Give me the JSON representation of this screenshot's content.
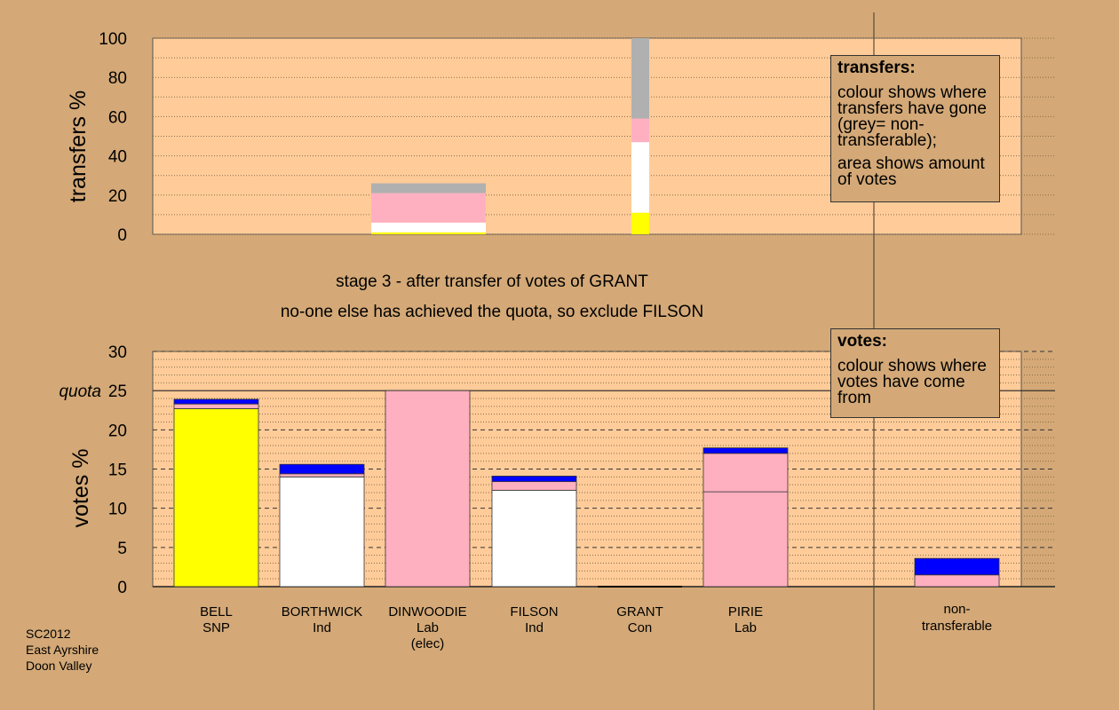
{
  "colors": {
    "background": "#d4a977",
    "plot": "#ffcc99",
    "SNP": "#ffff00",
    "Ind": "#ffffff",
    "Lab": "#ffb0c0",
    "Con": "#0000ff",
    "nontransferable": "#b0b0b0"
  },
  "titles": {
    "line1": "stage 3 - after transfer of votes of GRANT",
    "line2": "no-one else has achieved the quota, so exclude FILSON"
  },
  "legend_transfers": {
    "title": "transfers:",
    "para1": "colour shows where transfers have gone (grey= non-transferable);",
    "para2": "area shows amount of votes"
  },
  "legend_votes": {
    "title": "votes:",
    "para1": "colour shows where votes have come from"
  },
  "footer": {
    "line1": "SC2012",
    "line2": "East Ayrshire",
    "line3": "Doon Valley"
  },
  "candidates": [
    {
      "name": "BELL",
      "party": "SNP",
      "note": ""
    },
    {
      "name": "BORTHWICK",
      "party": "Ind",
      "note": ""
    },
    {
      "name": "DINWOODIE",
      "party": "Lab",
      "note": "(elec)"
    },
    {
      "name": "FILSON",
      "party": "Ind",
      "note": ""
    },
    {
      "name": "GRANT",
      "party": "Con",
      "note": ""
    },
    {
      "name": "PIRIE",
      "party": "Lab",
      "note": ""
    },
    {
      "name": "non-\ntransferable",
      "party": "",
      "note": ""
    }
  ],
  "chart_data": [
    {
      "type": "bar",
      "ylabel": "transfers %",
      "ylim": [
        0,
        100
      ],
      "yticks": [
        0,
        20,
        40,
        60,
        80,
        100
      ],
      "bars": [
        {
          "candidate": "BORTHWICK",
          "segments": [
            {
              "color": "SNP",
              "value": 1
            },
            {
              "color": "Ind",
              "value": 5
            },
            {
              "color": "Lab",
              "value": 15
            },
            {
              "color": "nontransferable",
              "value": 5
            }
          ]
        },
        {
          "candidate": "GRANT",
          "segments": [
            {
              "color": "SNP",
              "value": 11
            },
            {
              "color": "Ind",
              "value": 36
            },
            {
              "color": "Lab",
              "value": 12
            },
            {
              "color": "nontransferable",
              "value": 41
            }
          ]
        }
      ]
    },
    {
      "type": "bar",
      "ylabel": "votes %",
      "ylim": [
        0,
        30
      ],
      "yticks": [
        0,
        5,
        10,
        15,
        20,
        25,
        30
      ],
      "quota": 25,
      "quota_label": "quota",
      "bars": [
        {
          "candidate": "BELL",
          "segments": [
            {
              "color": "SNP",
              "value": 22.7
            },
            {
              "color": "Lab",
              "value": 0.6
            },
            {
              "color": "Con",
              "value": 0.6
            }
          ]
        },
        {
          "candidate": "BORTHWICK",
          "segments": [
            {
              "color": "Ind",
              "value": 14.0
            },
            {
              "color": "Lab",
              "value": 0.4
            },
            {
              "color": "Con",
              "value": 1.2
            }
          ]
        },
        {
          "candidate": "DINWOODIE",
          "segments": [
            {
              "color": "Lab",
              "value": 25.0
            }
          ]
        },
        {
          "candidate": "FILSON",
          "segments": [
            {
              "color": "Ind",
              "value": 12.3
            },
            {
              "color": "Lab",
              "value": 1.1
            },
            {
              "color": "Con",
              "value": 0.7
            }
          ]
        },
        {
          "candidate": "GRANT",
          "segments": [
            {
              "color": "Con",
              "value": 0.0
            }
          ]
        },
        {
          "candidate": "PIRIE",
          "segments": [
            {
              "color": "Lab",
              "value": 12.1
            },
            {
              "color": "Lab",
              "value": 4.9
            },
            {
              "color": "Con",
              "value": 0.7
            }
          ]
        },
        {
          "candidate": "non-\ntransferable",
          "segments": [
            {
              "color": "Lab",
              "value": 1.5
            },
            {
              "color": "Con",
              "value": 2.1
            }
          ]
        }
      ]
    }
  ]
}
